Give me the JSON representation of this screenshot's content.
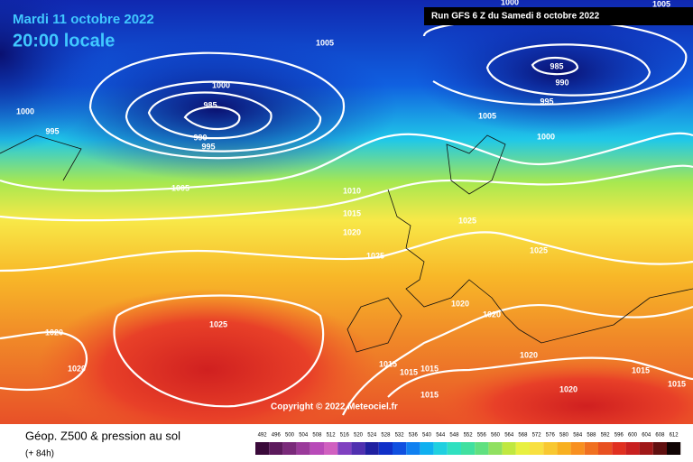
{
  "header": {
    "date": "Mardi 11 octobre 2022",
    "time": "20:00 locale",
    "run": "Run GFS 6 Z du Samedi 8 octobre 2022"
  },
  "isobars": [
    1005,
    1000,
    985,
    990,
    995,
    1000,
    995,
    1005,
    985,
    990,
    995,
    1005,
    1000,
    1000,
    1005,
    1010,
    1015,
    1020,
    1025,
    1025,
    1025,
    1020,
    1020,
    1025,
    1020,
    1020,
    1015,
    1015,
    1015,
    1020,
    1015,
    1020,
    1015,
    1015
  ],
  "copyright": "Copyright © 2022 Meteociel.fr",
  "footer": {
    "title": "Géop. Z500 & pression au sol",
    "lead": "(+ 84h)"
  },
  "scale": {
    "values": [
      492,
      496,
      500,
      504,
      508,
      512,
      516,
      520,
      524,
      528,
      532,
      536,
      540,
      544,
      548,
      552,
      556,
      560,
      564,
      568,
      572,
      576,
      580,
      584,
      588,
      592,
      596,
      600,
      604,
      608,
      612
    ],
    "colors": [
      "#3a0a3a",
      "#5c1a5c",
      "#7a2a7a",
      "#9a3a9a",
      "#b84ab8",
      "#d060c0",
      "#8040c0",
      "#5030b0",
      "#2020a0",
      "#1030c8",
      "#1050e0",
      "#1080f0",
      "#10b0f0",
      "#20d0e0",
      "#30e0c0",
      "#40e0a0",
      "#60e080",
      "#90e060",
      "#c0e840",
      "#e8f040",
      "#f8e040",
      "#f8c830",
      "#f8b020",
      "#f89020",
      "#f07020",
      "#e85020",
      "#e03020",
      "#c82020",
      "#a01818",
      "#601010",
      "#100404"
    ]
  }
}
